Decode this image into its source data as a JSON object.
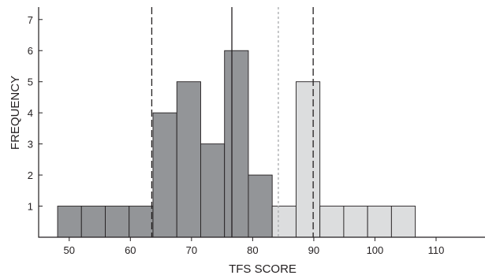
{
  "chart_data": {
    "type": "bar",
    "xlabel": "TFS SCORE",
    "ylabel": "FREQUENCY",
    "xlim": [
      45,
      118
    ],
    "ylim": [
      0,
      7.4
    ],
    "x_ticks": [
      50,
      60,
      70,
      80,
      90,
      100,
      110
    ],
    "y_ticks": [
      1,
      2,
      3,
      4,
      5,
      6,
      7
    ],
    "bin_width": 3.9,
    "bins": [
      {
        "x0": 48.1,
        "count": 1,
        "group": "dark"
      },
      {
        "x0": 52.0,
        "count": 1,
        "group": "dark"
      },
      {
        "x0": 55.9,
        "count": 1,
        "group": "dark"
      },
      {
        "x0": 59.8,
        "count": 1,
        "group": "dark"
      },
      {
        "x0": 63.7,
        "count": 4,
        "group": "dark"
      },
      {
        "x0": 67.6,
        "count": 5,
        "group": "dark"
      },
      {
        "x0": 71.5,
        "count": 3,
        "group": "dark"
      },
      {
        "x0": 75.4,
        "count": 6,
        "group": "dark"
      },
      {
        "x0": 79.3,
        "count": 2,
        "group": "dark"
      },
      {
        "x0": 83.2,
        "count": 1,
        "group": "light"
      },
      {
        "x0": 87.1,
        "count": 5,
        "group": "light"
      },
      {
        "x0": 91.0,
        "count": 1,
        "group": "light"
      },
      {
        "x0": 94.9,
        "count": 1,
        "group": "light"
      },
      {
        "x0": 98.8,
        "count": 1,
        "group": "light"
      },
      {
        "x0": 102.7,
        "count": 1,
        "group": "light"
      }
    ],
    "reference_lines": [
      {
        "x": 63.5,
        "style": "dashed",
        "color": "#231f20"
      },
      {
        "x": 76.6,
        "style": "solid",
        "color": "#231f20"
      },
      {
        "x": 84.2,
        "style": "dotted",
        "color": "#a7a9ac"
      },
      {
        "x": 89.9,
        "style": "dashed",
        "color": "#231f20"
      }
    ],
    "colors": {
      "dark": "#939598",
      "light": "#dcddde",
      "axis": "#231f20"
    },
    "grid": false
  }
}
